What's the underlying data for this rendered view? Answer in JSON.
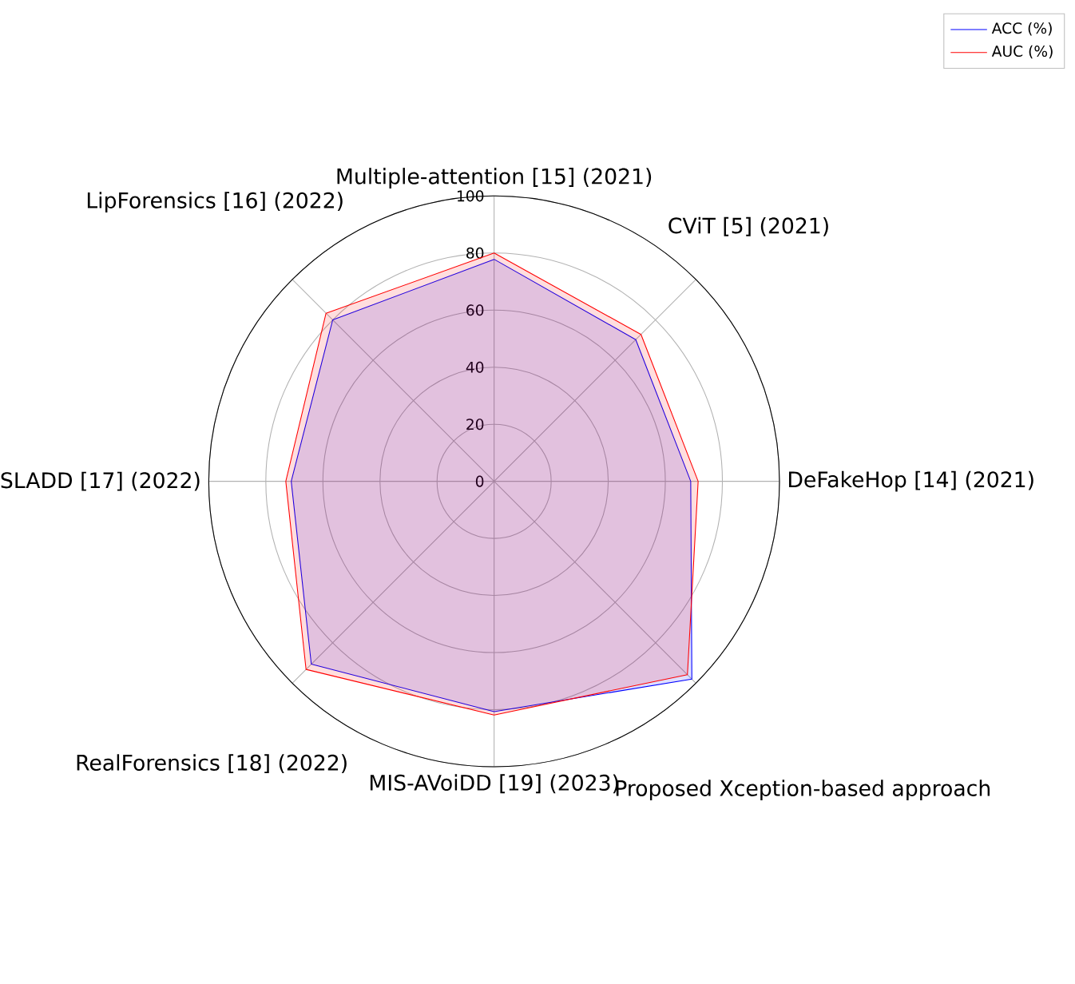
{
  "chart_data": {
    "type": "radar",
    "categories": [
      "Multiple-attention [15] (2021)",
      "CViT [5] (2021)",
      "DeFakeHop [14] (2021)",
      "Proposed Xception-based approach",
      "MIS-AVoiDD [19] (2023)",
      "RealForensics [18] (2022)",
      "SLADD [17] (2022)",
      "LipForensics [16] (2022)"
    ],
    "series": [
      {
        "name": "ACC (%)",
        "color": "#0000ff",
        "values": [
          77.8,
          70.2,
          68.9,
          98,
          80.7,
          90.6,
          71.1,
          80
        ]
      },
      {
        "name": "AUC (%)",
        "color": "#ff0000",
        "values": [
          80,
          72.8,
          71.5,
          95.8,
          81.9,
          93.2,
          73,
          83.3
        ]
      }
    ],
    "ylim": [
      0,
      100
    ],
    "yticks": [
      0,
      20,
      40,
      60,
      80,
      100
    ],
    "grid": true,
    "legend": "top right",
    "marker": "none"
  }
}
